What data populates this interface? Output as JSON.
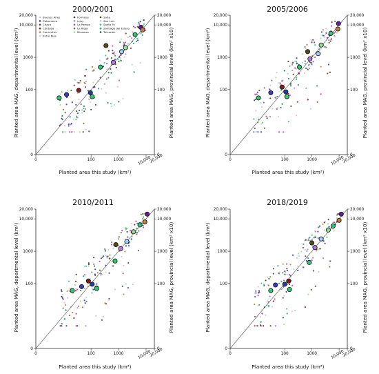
{
  "figure": {
    "y_label_left": "Planted area MAG, departmental level (km²)",
    "y_label_right": "Planted area MAG, provincial level (km² x10)",
    "x_label": "Planted area this study (km²)"
  },
  "legend": {
    "entries": [
      {
        "name": "Buenos Aires",
        "color": "#c7c7c7"
      },
      {
        "name": "Catamarca",
        "color": "#1f3fa8"
      },
      {
        "name": "Chaco",
        "color": "#3a3acc"
      },
      {
        "name": "Córdoba",
        "color": "#8b1a1a"
      },
      {
        "name": "Corrientes",
        "color": "#c87f3a"
      },
      {
        "name": "Entre Ríos",
        "color": "#f2b8b8"
      },
      {
        "name": "Formosa",
        "color": "#6a1b9a"
      },
      {
        "name": "Jujuy",
        "color": "#b57be0"
      },
      {
        "name": "La Pampa",
        "color": "#d02fd0"
      },
      {
        "name": "La Rioja",
        "color": "#8b6b3a"
      },
      {
        "name": "Misiones",
        "color": "#8ee08e"
      },
      {
        "name": "Salta",
        "color": "#5a4a1a"
      },
      {
        "name": "San Luis",
        "color": "#9fd0ff"
      },
      {
        "name": "Santa Fe",
        "color": "#2ecc71"
      },
      {
        "name": "Santiago del Estero",
        "color": "#1aa06a"
      },
      {
        "name": "Tucumán",
        "color": "#0a7a4a"
      }
    ]
  },
  "chart_data": [
    {
      "type": "scatter",
      "title": "2000/2001",
      "x_scale": "symlog",
      "y_scale": "symlog",
      "x_ticks": [
        "0",
        "100",
        "1000",
        "10,000",
        "20,000"
      ],
      "y_ticks": [
        "0",
        "100",
        "1000",
        "10,000",
        "20,000"
      ],
      "y_right_ticks": [
        "0",
        "100",
        "1000",
        "10,000",
        "20,000"
      ],
      "identity_line": true,
      "legend_placement": "top-left",
      "province_points": [
        {
          "x": 6,
          "y": 55,
          "color": "#2ecc71"
        },
        {
          "x": 12,
          "y": 70,
          "color": "#3a3acc"
        },
        {
          "x": 35,
          "y": 95,
          "color": "#8b1a1a"
        },
        {
          "x": 95,
          "y": 80,
          "color": "#1f3fa8"
        },
        {
          "x": 110,
          "y": 60,
          "color": "#2ecc71"
        },
        {
          "x": 220,
          "y": 500,
          "color": "#2ecc71"
        },
        {
          "x": 350,
          "y": 2300,
          "color": "#5a4a1a"
        },
        {
          "x": 650,
          "y": 700,
          "color": "#b57be0"
        },
        {
          "x": 1300,
          "y": 1500,
          "color": "#9fd0ff"
        },
        {
          "x": 1800,
          "y": 2000,
          "color": "#8ee08e"
        },
        {
          "x": 4000,
          "y": 5000,
          "color": "#2ecc71"
        },
        {
          "x": 6500,
          "y": 8500,
          "color": "#6a1b9a"
        },
        {
          "x": 7500,
          "y": 7000,
          "color": "#c87f3a"
        }
      ]
    },
    {
      "type": "scatter",
      "title": "2005/2006",
      "x_scale": "symlog",
      "y_scale": "symlog",
      "x_ticks": [
        "0",
        "100",
        "1000",
        "10,000",
        "20,000"
      ],
      "y_ticks": [
        "0",
        "100",
        "1000",
        "10,000",
        "20,000"
      ],
      "y_right_ticks": [
        "0",
        "100",
        "1000",
        "10,000",
        "20,000"
      ],
      "identity_line": true,
      "province_points": [
        {
          "x": 10,
          "y": 55,
          "color": "#2ecc71"
        },
        {
          "x": 30,
          "y": 80,
          "color": "#3a3acc"
        },
        {
          "x": 80,
          "y": 120,
          "color": "#8b1a1a"
        },
        {
          "x": 110,
          "y": 85,
          "color": "#1f3fa8"
        },
        {
          "x": 120,
          "y": 60,
          "color": "#2ecc71"
        },
        {
          "x": 350,
          "y": 500,
          "color": "#2ecc71"
        },
        {
          "x": 700,
          "y": 1500,
          "color": "#5a4a1a"
        },
        {
          "x": 850,
          "y": 900,
          "color": "#b57be0"
        },
        {
          "x": 1700,
          "y": 1300,
          "color": "#9fd0ff"
        },
        {
          "x": 2200,
          "y": 2400,
          "color": "#8ee08e"
        },
        {
          "x": 5000,
          "y": 5500,
          "color": "#2ecc71"
        },
        {
          "x": 9500,
          "y": 11000,
          "color": "#6a1b9a"
        },
        {
          "x": 9000,
          "y": 7500,
          "color": "#c87f3a"
        }
      ]
    },
    {
      "type": "scatter",
      "title": "2010/2011",
      "x_scale": "symlog",
      "y_scale": "symlog",
      "x_ticks": [
        "0",
        "100",
        "1000",
        "10,000",
        "20,000"
      ],
      "y_ticks": [
        "0",
        "100",
        "1000",
        "10,000",
        "20,000"
      ],
      "y_right_ticks": [
        "0",
        "100",
        "1000",
        "10,000",
        "20,000"
      ],
      "identity_line": true,
      "province_points": [
        {
          "x": 20,
          "y": 60,
          "color": "#2ecc71"
        },
        {
          "x": 45,
          "y": 80,
          "color": "#3a3acc"
        },
        {
          "x": 80,
          "y": 120,
          "color": "#8b1a1a"
        },
        {
          "x": 110,
          "y": 95,
          "color": "#1f3fa8"
        },
        {
          "x": 160,
          "y": 70,
          "color": "#2ecc71"
        },
        {
          "x": 750,
          "y": 500,
          "color": "#2ecc71"
        },
        {
          "x": 800,
          "y": 1600,
          "color": "#5a4a1a"
        },
        {
          "x": 1200,
          "y": 1200,
          "color": "#b57be0"
        },
        {
          "x": 2000,
          "y": 2000,
          "color": "#9fd0ff"
        },
        {
          "x": 3500,
          "y": 4000,
          "color": "#8ee08e"
        },
        {
          "x": 6000,
          "y": 6500,
          "color": "#2ecc71"
        },
        {
          "x": 11000,
          "y": 14000,
          "color": "#6a1b9a"
        },
        {
          "x": 9000,
          "y": 8000,
          "color": "#c87f3a"
        }
      ]
    },
    {
      "type": "scatter",
      "title": "2018/2019",
      "x_scale": "symlog",
      "y_scale": "symlog",
      "x_ticks": [
        "0",
        "100",
        "1000",
        "10,000",
        "20,000"
      ],
      "y_ticks": [
        "0",
        "100",
        "1000",
        "10,000",
        "20,000"
      ],
      "y_right_ticks": [
        "0",
        "100",
        "1000",
        "10,000",
        "20,000"
      ],
      "identity_line": true,
      "province_points": [
        {
          "x": 30,
          "y": 60,
          "color": "#2ecc71"
        },
        {
          "x": 45,
          "y": 90,
          "color": "#3a3acc"
        },
        {
          "x": 140,
          "y": 120,
          "color": "#8b1a1a"
        },
        {
          "x": 100,
          "y": 95,
          "color": "#1f3fa8"
        },
        {
          "x": 150,
          "y": 65,
          "color": "#2ecc71"
        },
        {
          "x": 800,
          "y": 450,
          "color": "#2ecc71"
        },
        {
          "x": 1000,
          "y": 1800,
          "color": "#5a4a1a"
        },
        {
          "x": 1300,
          "y": 1300,
          "color": "#b57be0"
        },
        {
          "x": 2200,
          "y": 2400,
          "color": "#9fd0ff"
        },
        {
          "x": 4000,
          "y": 4500,
          "color": "#8ee08e"
        },
        {
          "x": 6000,
          "y": 6000,
          "color": "#2ecc71"
        },
        {
          "x": 12000,
          "y": 14000,
          "color": "#6a1b9a"
        },
        {
          "x": 10000,
          "y": 9000,
          "color": "#c87f3a"
        }
      ]
    }
  ]
}
